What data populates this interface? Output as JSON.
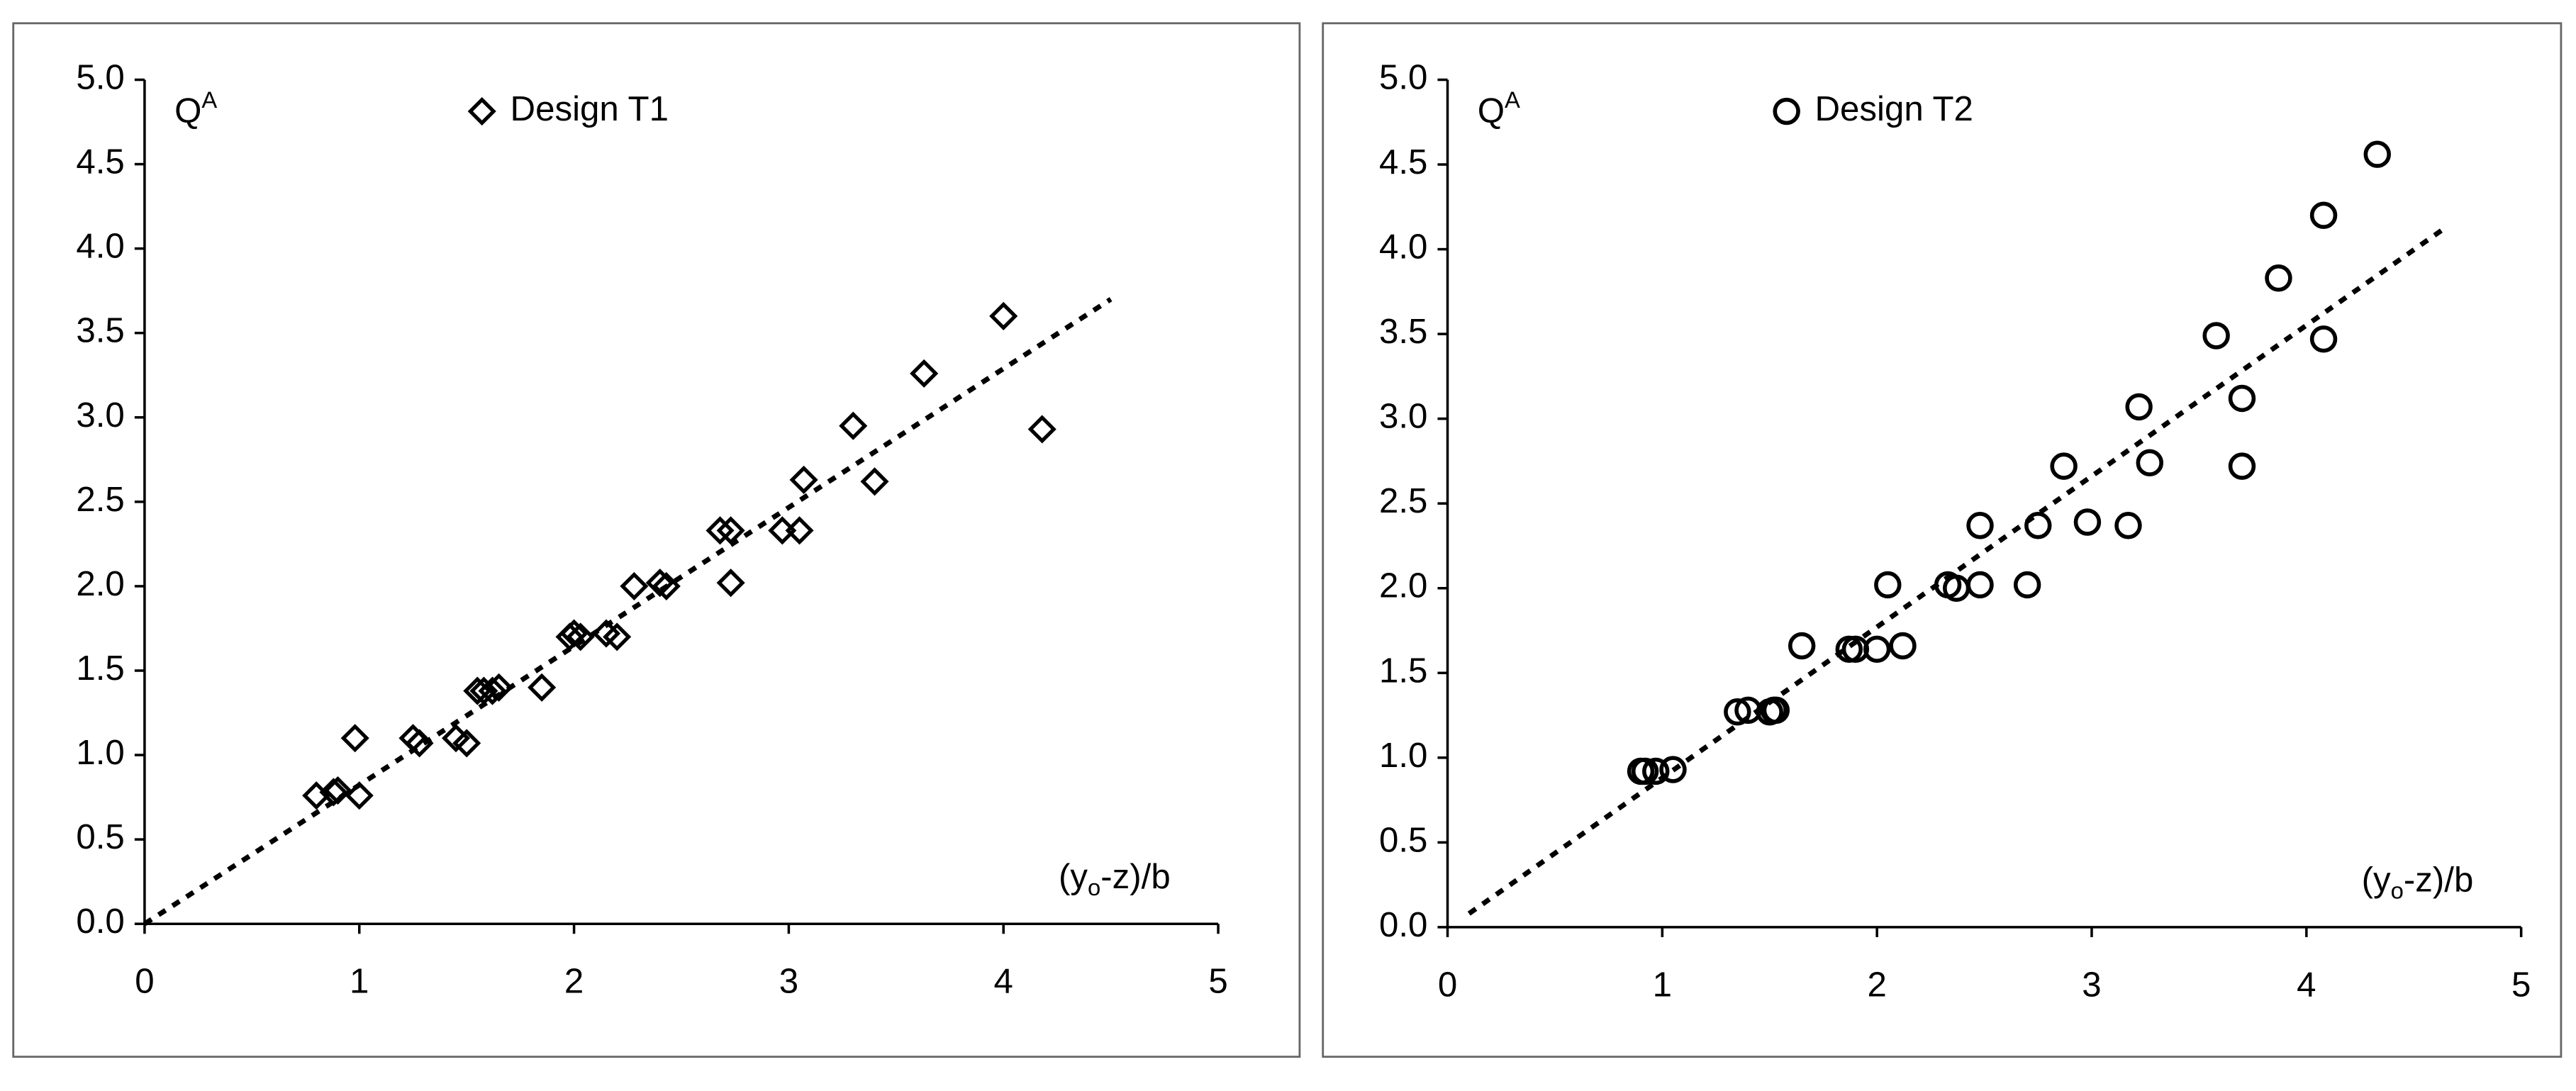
{
  "chart_data": [
    {
      "type": "scatter",
      "ylabel": "Q",
      "ylabel_sup": "A",
      "xlabel_pre": "(y",
      "xlabel_sub": "o",
      "xlabel_post": "-z)/b",
      "xlim": [
        0,
        5
      ],
      "ylim": [
        0,
        5
      ],
      "xticks": [
        0,
        1,
        2,
        3,
        4,
        5
      ],
      "yticks": [
        {
          "value": 0,
          "label": "0.0"
        },
        {
          "value": 0.5,
          "label": "0.5"
        },
        {
          "value": 1,
          "label": "1.0"
        },
        {
          "value": 1.5,
          "label": "1.5"
        },
        {
          "value": 2,
          "label": "2.0"
        },
        {
          "value": 2.5,
          "label": "2.5"
        },
        {
          "value": 3,
          "label": "3.0"
        },
        {
          "value": 3.5,
          "label": "3.5"
        },
        {
          "value": 4,
          "label": "4.0"
        },
        {
          "value": 4.5,
          "label": "4.5"
        },
        {
          "value": 5,
          "label": "5.0"
        }
      ],
      "series": [
        {
          "name": "Design T1",
          "marker": "diamond",
          "color": "#000000",
          "x": [
            0.8,
            0.88,
            0.9,
            0.98,
            1.0,
            1.25,
            1.28,
            1.45,
            1.5,
            1.55,
            1.58,
            1.62,
            1.65,
            1.85,
            1.98,
            2.0,
            2.03,
            2.15,
            2.2,
            2.28,
            2.4,
            2.43,
            2.68,
            2.73,
            2.73,
            2.97,
            3.05,
            3.07,
            3.3,
            3.4,
            3.63,
            4.0,
            4.18
          ],
          "y": [
            0.76,
            0.78,
            0.79,
            1.1,
            0.76,
            1.1,
            1.07,
            1.1,
            1.07,
            1.38,
            1.38,
            1.38,
            1.4,
            1.4,
            1.7,
            1.72,
            1.7,
            1.72,
            1.7,
            2.0,
            2.02,
            2.0,
            2.33,
            2.33,
            2.02,
            2.33,
            2.33,
            2.63,
            2.95,
            2.62,
            3.26,
            3.6,
            2.93
          ]
        }
      ],
      "trendline": {
        "x": [
          0,
          4.5
        ],
        "y": [
          0,
          3.7
        ]
      }
    },
    {
      "type": "scatter",
      "ylabel": "Q",
      "ylabel_sup": "A",
      "xlabel_pre": "(y",
      "xlabel_sub": "o",
      "xlabel_post": "-z)/b",
      "xlim": [
        0,
        5
      ],
      "ylim": [
        0,
        5
      ],
      "xticks": [
        0,
        1,
        2,
        3,
        4,
        5
      ],
      "yticks": [
        {
          "value": 0,
          "label": "0.0"
        },
        {
          "value": 0.5,
          "label": "0.5"
        },
        {
          "value": 1,
          "label": "1.0"
        },
        {
          "value": 1.5,
          "label": "1.5"
        },
        {
          "value": 2,
          "label": "2.0"
        },
        {
          "value": 2.5,
          "label": "2.5"
        },
        {
          "value": 3,
          "label": "3.0"
        },
        {
          "value": 3.5,
          "label": "3.5"
        },
        {
          "value": 4,
          "label": "4.0"
        },
        {
          "value": 4.5,
          "label": "4.5"
        },
        {
          "value": 5,
          "label": "5.0"
        }
      ],
      "series": [
        {
          "name": "Design T2",
          "marker": "circle",
          "color": "#000000",
          "x": [
            0.9,
            0.92,
            0.97,
            1.05,
            1.35,
            1.4,
            1.5,
            1.52,
            1.53,
            1.65,
            1.87,
            1.9,
            2.0,
            2.05,
            2.12,
            2.33,
            2.37,
            2.48,
            2.48,
            2.7,
            2.75,
            2.87,
            2.98,
            3.17,
            3.22,
            3.27,
            3.58,
            3.7,
            3.7,
            3.87,
            4.08,
            4.08,
            4.33
          ],
          "y": [
            0.92,
            0.92,
            0.92,
            0.93,
            1.27,
            1.28,
            1.27,
            1.28,
            1.28,
            1.66,
            1.64,
            1.64,
            1.64,
            2.02,
            1.66,
            2.02,
            2.0,
            2.02,
            2.37,
            2.02,
            2.37,
            2.72,
            2.39,
            2.37,
            3.07,
            2.74,
            3.49,
            3.12,
            2.72,
            3.83,
            4.2,
            3.47,
            4.56
          ]
        }
      ],
      "trendline": {
        "x": [
          0.1,
          4.65
        ],
        "y": [
          0.08,
          4.13
        ]
      }
    }
  ]
}
